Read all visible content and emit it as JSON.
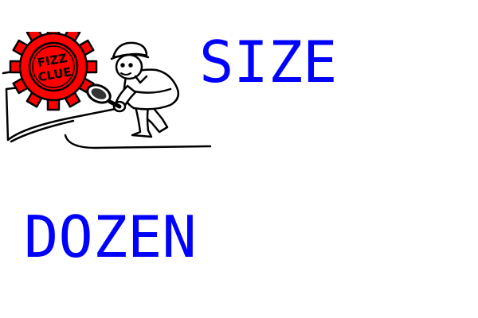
{
  "logo": {
    "text_line1": "FIZZ",
    "text_line2": "CLUE",
    "gear_color": "#ff0000",
    "outline_color": "#000000"
  },
  "words": [
    {
      "text": "SIZE"
    },
    {
      "text": "DOZEN"
    }
  ],
  "colors": {
    "word_text": "#0000ff",
    "background": "#ffffff"
  }
}
